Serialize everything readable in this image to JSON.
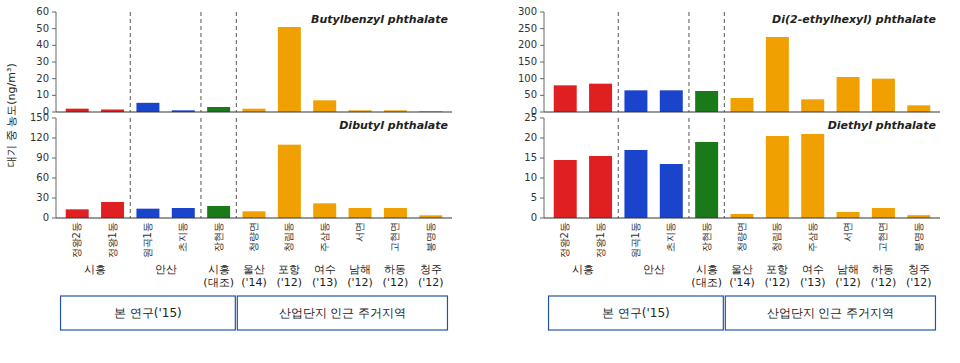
{
  "chart_data": [
    {
      "type": "bar",
      "title": "Butylbenzyl phthalate",
      "ylabel": "대기 중 농도(ng/m³)",
      "categories": [
        "정왕2동",
        "정왕1동",
        "원곡1동",
        "초지동",
        "장현동",
        "청량면",
        "청림동",
        "주삼동",
        "서면",
        "고현면",
        "봉명동"
      ],
      "values": [
        2.0,
        1.5,
        5.5,
        1.0,
        3.0,
        2.0,
        51.0,
        7.0,
        1.0,
        1.0,
        0.5
      ],
      "colors": [
        "#e02020",
        "#e02020",
        "#1a44cc",
        "#1a44cc",
        "#1a7a1a",
        "#f0a000",
        "#f0a000",
        "#f0a000",
        "#f0a000",
        "#f0a000",
        "#f0a000"
      ],
      "ylim": [
        0,
        60
      ],
      "yticks": [
        0,
        10,
        20,
        30,
        40,
        50,
        60
      ],
      "tick_labels": "y",
      "dividers_after": [
        "정왕1동",
        "초지동",
        "장현동"
      ]
    },
    {
      "type": "bar",
      "title": "Dibutyl phthalate",
      "categories": [
        "정왕2동",
        "정왕1동",
        "원곡1동",
        "초지동",
        "장현동",
        "청량면",
        "청림동",
        "주삼동",
        "서면",
        "고현면",
        "봉명동"
      ],
      "values": [
        13.0,
        24.0,
        14.0,
        15.0,
        18.0,
        10.0,
        110.0,
        22.0,
        15.0,
        15.0,
        4.0
      ],
      "colors": [
        "#e02020",
        "#e02020",
        "#1a44cc",
        "#1a44cc",
        "#1a7a1a",
        "#f0a000",
        "#f0a000",
        "#f0a000",
        "#f0a000",
        "#f0a000",
        "#f0a000"
      ],
      "ylim": [
        0,
        150
      ],
      "yticks": [
        0,
        30,
        60,
        90,
        120,
        150
      ],
      "dividers_after": [
        "정왕1동",
        "초지동",
        "장현동"
      ],
      "group_labels": [
        {
          "label": "시흥",
          "categories": [
            "정왕2동",
            "정왕1동"
          ]
        },
        {
          "label": "안산",
          "categories": [
            "원곡1동",
            "초지동"
          ]
        },
        {
          "label": "시흥\n(대조)",
          "categories": [
            "장현동"
          ]
        },
        {
          "label": "울산\n('14)",
          "categories": [
            "청량면"
          ]
        },
        {
          "label": "포항\n('12)",
          "categories": [
            "청림동"
          ]
        },
        {
          "label": "여수\n('13)",
          "categories": [
            "주삼동"
          ]
        },
        {
          "label": "남해\n('12)",
          "categories": [
            "서면"
          ]
        },
        {
          "label": "하동\n('12)",
          "categories": [
            "고현면"
          ]
        },
        {
          "label": "청주\n('12)",
          "categories": [
            "봉명동"
          ]
        }
      ],
      "boxes": [
        {
          "label": "본 연구('15)",
          "categories": [
            "정왕2동",
            "정왕1동",
            "원곡1동",
            "초지동",
            "장현동"
          ]
        },
        {
          "label": "산업단지 인근 주거지역",
          "categories": [
            "청량면",
            "청림동",
            "주삼동",
            "서면",
            "고현면",
            "봉명동"
          ]
        }
      ]
    },
    {
      "type": "bar",
      "title": "Di(2-ethylhexyl) phthalate",
      "categories": [
        "정왕2동",
        "정왕1동",
        "원곡1동",
        "초지동",
        "장현동",
        "청량면",
        "청림동",
        "주삼동",
        "서면",
        "고현면",
        "봉명동"
      ],
      "values": [
        80.0,
        85.0,
        65.0,
        65.0,
        63.0,
        42.0,
        225.0,
        38.0,
        105.0,
        100.0,
        20.0
      ],
      "colors": [
        "#e02020",
        "#e02020",
        "#1a44cc",
        "#1a44cc",
        "#1a7a1a",
        "#f0a000",
        "#f0a000",
        "#f0a000",
        "#f0a000",
        "#f0a000",
        "#f0a000"
      ],
      "ylim": [
        0,
        300
      ],
      "yticks": [
        0,
        50,
        100,
        150,
        200,
        250,
        300
      ],
      "tick_labels": "y",
      "dividers_after": [
        "정왕1동",
        "초지동",
        "장현동"
      ]
    },
    {
      "type": "bar",
      "title": "Diethyl phthalate",
      "categories": [
        "정왕2동",
        "정왕1동",
        "원곡1동",
        "초지동",
        "장현동",
        "청량면",
        "청림동",
        "주삼동",
        "서면",
        "고현면",
        "봉명동"
      ],
      "values": [
        14.5,
        15.5,
        17.0,
        13.5,
        19.0,
        1.0,
        20.5,
        21.0,
        1.5,
        2.5,
        0.7
      ],
      "colors": [
        "#e02020",
        "#e02020",
        "#1a44cc",
        "#1a44cc",
        "#1a7a1a",
        "#f0a000",
        "#f0a000",
        "#f0a000",
        "#f0a000",
        "#f0a000",
        "#f0a000"
      ],
      "ylim": [
        0,
        25
      ],
      "yticks": [
        0,
        5,
        10,
        15,
        20,
        25
      ],
      "dividers_after": [
        "정왕1동",
        "초지동",
        "장현동"
      ],
      "group_labels": [
        {
          "label": "시흥",
          "categories": [
            "정왕2동",
            "정왕1동"
          ]
        },
        {
          "label": "안산",
          "categories": [
            "원곡1동",
            "초지동"
          ]
        },
        {
          "label": "시흥\n(대조)",
          "categories": [
            "장현동"
          ]
        },
        {
          "label": "울산\n('14)",
          "categories": [
            "청량면"
          ]
        },
        {
          "label": "포항\n('12)",
          "categories": [
            "청림동"
          ]
        },
        {
          "label": "여수\n('13)",
          "categories": [
            "주삼동"
          ]
        },
        {
          "label": "남해\n('12)",
          "categories": [
            "서면"
          ]
        },
        {
          "label": "하동\n('12)",
          "categories": [
            "고현면"
          ]
        },
        {
          "label": "청주\n('12)",
          "categories": [
            "봉명동"
          ]
        }
      ],
      "boxes": [
        {
          "label": "본 연구('15)",
          "categories": [
            "정왕2동",
            "정왕1동",
            "원곡1동",
            "초지동",
            "장현동"
          ]
        },
        {
          "label": "산업단지 인근 주거지역",
          "categories": [
            "청량면",
            "청림동",
            "주삼동",
            "서면",
            "고현면",
            "봉명동"
          ]
        }
      ]
    }
  ]
}
